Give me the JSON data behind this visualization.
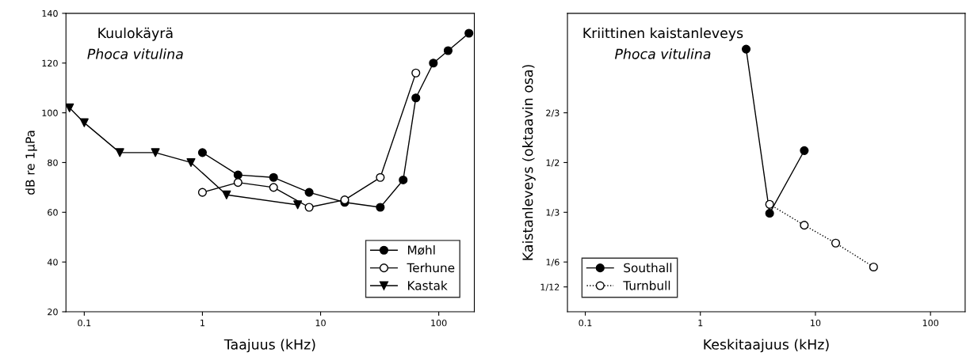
{
  "chart_data": [
    {
      "type": "line",
      "title": "Kuulokäyrä",
      "subtitle": "Phoca vitulina",
      "xlabel": "Taajuus (kHz)",
      "ylabel": "dB re 1µPa",
      "log": "x",
      "xlim": [
        0.07,
        200
      ],
      "xticks": [
        0.1,
        1,
        10,
        100
      ],
      "ylim": [
        20,
        140
      ],
      "yticks": [
        20,
        40,
        60,
        80,
        100,
        120,
        140
      ],
      "grid": false,
      "legend": "bottom right",
      "series": [
        {
          "name": "Møhl",
          "color": "#000000",
          "marker": "circle",
          "line_style": "solid",
          "x": [
            1,
            2,
            4,
            8,
            16,
            32,
            50,
            64,
            90,
            120,
            180
          ],
          "values": [
            84,
            75,
            74,
            68,
            64,
            62,
            73,
            106,
            120,
            125,
            132
          ]
        },
        {
          "name": "Terhune",
          "color": "#000000",
          "colors": [
            "#ffffff",
            "#ffffff",
            "#ffffff",
            "#ffffff",
            "#ffffff",
            "#ffffff",
            "#ffffff"
          ],
          "marker": "circle",
          "line_style": "solid",
          "x": [
            1,
            2,
            4,
            8,
            16,
            32,
            64
          ],
          "values": [
            68,
            72,
            70,
            62,
            65,
            74,
            116
          ]
        },
        {
          "name": "Kastak",
          "color": "#000000",
          "marker": "triangle",
          "line_style": "solid",
          "x": [
            0.075,
            0.1,
            0.2,
            0.4,
            0.8,
            1.6,
            6.4
          ],
          "values": [
            102,
            96,
            84,
            84,
            80,
            67,
            63
          ]
        }
      ]
    },
    {
      "type": "line",
      "title": "Kriittinen kaistanleveys",
      "subtitle": "Phoca vitulina",
      "xlabel": "Keskitaajuus (kHz)",
      "ylabel": "Kaistanleveys (oktaavin osa)",
      "log": "x",
      "xlim": [
        0.07,
        200
      ],
      "xticks": [
        0.1,
        1,
        10,
        100
      ],
      "ylim": [
        0,
        1
      ],
      "yticks": [
        {
          "value": 0.0833,
          "label": "1/12"
        },
        {
          "value": 0.1667,
          "label": "1/6"
        },
        {
          "value": 0.3333,
          "label": "1/3"
        },
        {
          "value": 0.5,
          "label": "1/2"
        },
        {
          "value": 0.6667,
          "label": "2/3"
        }
      ],
      "grid": false,
      "legend": "bottom left",
      "series": [
        {
          "name": "Southall",
          "color": "#000000",
          "marker": "circle",
          "line_style": "solid",
          "x": [
            2.5,
            4,
            8
          ],
          "values": [
            0.88,
            0.33,
            0.54
          ]
        },
        {
          "name": "Turnbull",
          "color": "#000000",
          "colors": [
            "#ffffff",
            "#ffffff",
            "#ffffff",
            "#ffffff"
          ],
          "marker": "circle",
          "line_style": "dotted",
          "x": [
            4,
            8,
            15,
            32
          ],
          "values": [
            0.36,
            0.29,
            0.23,
            0.15
          ]
        }
      ]
    }
  ]
}
